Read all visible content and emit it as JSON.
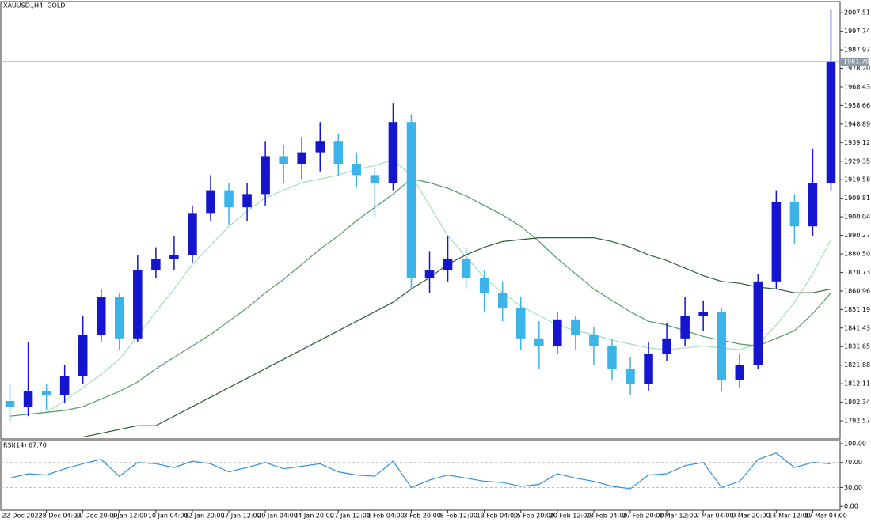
{
  "chart_data": {
    "type": "candlestick",
    "title": "XAUUSD.,H4:  GOLD",
    "up_color": "#1515d0",
    "down_color": "#3cb4ea",
    "categories": [
      "22 Dec 2022",
      null,
      "28 Dec 04:00",
      null,
      "30 Dec 20:00",
      null,
      "5 Jan 12:00",
      null,
      "10 Jan 04:00",
      null,
      "12 Jan 20:00",
      null,
      "17 Jan 12:00",
      null,
      "20 Jan 04:00",
      null,
      "24 Jan 20:00",
      null,
      "27 Jan 12:00",
      null,
      "1 Feb 04:00",
      null,
      "3 Feb 20:00",
      null,
      "8 Feb 12:00",
      null,
      "13 Feb 04:00",
      null,
      "15 Feb 20:00",
      null,
      "20 Feb 12:00",
      null,
      "23 Feb 04:00",
      null,
      "27 Feb 20:00",
      null,
      "2 Mar 12:00",
      null,
      "7 Mar 04:00",
      null,
      "9 Mar 20:00",
      null,
      "14 Mar 12:00",
      null,
      "17 Mar 04:00",
      null
    ],
    "candles": [
      [
        1803,
        1812,
        1792,
        1800
      ],
      [
        1800,
        1834,
        1795,
        1808
      ],
      [
        1808,
        1812,
        1798,
        1806
      ],
      [
        1806,
        1822,
        1802,
        1816
      ],
      [
        1816,
        1848,
        1812,
        1838
      ],
      [
        1838,
        1862,
        1834,
        1858
      ],
      [
        1858,
        1860,
        1830,
        1836
      ],
      [
        1836,
        1880,
        1834,
        1872
      ],
      [
        1872,
        1884,
        1868,
        1878
      ],
      [
        1878,
        1890,
        1872,
        1880
      ],
      [
        1880,
        1906,
        1876,
        1902
      ],
      [
        1902,
        1922,
        1898,
        1914
      ],
      [
        1914,
        1918,
        1896,
        1905
      ],
      [
        1905,
        1918,
        1898,
        1912
      ],
      [
        1912,
        1940,
        1906,
        1932
      ],
      [
        1932,
        1938,
        1918,
        1928
      ],
      [
        1928,
        1942,
        1920,
        1934
      ],
      [
        1934,
        1950,
        1924,
        1940
      ],
      [
        1940,
        1944,
        1922,
        1928
      ],
      [
        1928,
        1934,
        1916,
        1922
      ],
      [
        1922,
        1926,
        1900,
        1918
      ],
      [
        1918,
        1960,
        1914,
        1950
      ],
      [
        1950,
        1954,
        1862,
        1868
      ],
      [
        1868,
        1882,
        1860,
        1872
      ],
      [
        1872,
        1890,
        1866,
        1878
      ],
      [
        1878,
        1884,
        1862,
        1868
      ],
      [
        1868,
        1872,
        1850,
        1860
      ],
      [
        1860,
        1866,
        1845,
        1852
      ],
      [
        1852,
        1858,
        1830,
        1836
      ],
      [
        1836,
        1845,
        1820,
        1832
      ],
      [
        1832,
        1850,
        1828,
        1846
      ],
      [
        1846,
        1848,
        1830,
        1838
      ],
      [
        1838,
        1842,
        1822,
        1832
      ],
      [
        1832,
        1836,
        1814,
        1820
      ],
      [
        1820,
        1826,
        1806,
        1812
      ],
      [
        1812,
        1834,
        1808,
        1828
      ],
      [
        1828,
        1844,
        1824,
        1836
      ],
      [
        1836,
        1858,
        1832,
        1848
      ],
      [
        1848,
        1856,
        1840,
        1850
      ],
      [
        1850,
        1852,
        1808,
        1814
      ],
      [
        1814,
        1828,
        1810,
        1822
      ],
      [
        1822,
        1870,
        1820,
        1866
      ],
      [
        1866,
        1914,
        1862,
        1908
      ],
      [
        1908,
        1912,
        1886,
        1895
      ],
      [
        1895,
        1936,
        1890,
        1918
      ],
      [
        1918,
        2009,
        1914,
        1982
      ]
    ],
    "series": [
      {
        "color": "#9fe0b4",
        "values": [
          1795,
          1796,
          1797,
          1803,
          1810,
          1817,
          1825,
          1837,
          1850,
          1862,
          1875,
          1885,
          1895,
          1903,
          1910,
          1914,
          1918,
          1920,
          1922,
          1925,
          1927,
          1930,
          1922,
          1906,
          1890,
          1879,
          1868,
          1860,
          1853,
          1848,
          1843,
          1840,
          1838,
          1835,
          1833,
          1831,
          1830,
          1831,
          1832,
          1831,
          1830,
          1833,
          1843,
          1855,
          1870,
          1888
        ]
      },
      {
        "color": "#4f9d64",
        "values": [
          1795,
          1796,
          1797,
          1798,
          1800,
          1804,
          1808,
          1813,
          1820,
          1826,
          1832,
          1838,
          1845,
          1852,
          1860,
          1867,
          1875,
          1883,
          1890,
          1898,
          1905,
          1912,
          1920,
          1918,
          1915,
          1911,
          1906,
          1901,
          1895,
          1887,
          1878,
          1870,
          1862,
          1856,
          1850,
          1845,
          1843,
          1840,
          1837,
          1835,
          1833,
          1832,
          1836,
          1840,
          1849,
          1860
        ]
      },
      {
        "color": "#2b6038",
        "values": [
          null,
          null,
          null,
          null,
          1784,
          1786,
          1788,
          1790,
          1790,
          1795,
          1800,
          1805,
          1810,
          1815,
          1820,
          1825,
          1830,
          1835,
          1840,
          1845,
          1850,
          1855,
          1862,
          1868,
          1875,
          1880,
          1884,
          1887,
          1888,
          1889,
          1889,
          1889,
          1889,
          1887,
          1884,
          1880,
          1877,
          1873,
          1869,
          1866,
          1865,
          1863,
          1862,
          1860,
          1860,
          1862
        ]
      }
    ],
    "current_price": {
      "value": 1981.79,
      "label": "1981.79"
    },
    "ylim": [
      1783,
      2013
    ],
    "yticks": [
      1792.57,
      {
        "value": 1802.34,
        "label": "1802.34"
      },
      1812.11,
      1821.88,
      1831.65,
      1841.43,
      1851.19,
      1860.96,
      1870.73,
      {
        "value": 1880.5,
        "label": "1880.50"
      },
      1890.27,
      {
        "value": 1900.04,
        "label": "1900.04"
      },
      1909.81,
      1919.58,
      1929.35,
      1939.12,
      1948.89,
      1958.66,
      1968.43,
      {
        "value": 1978.2,
        "label": "1978.20"
      },
      1987.97,
      1997.74,
      2007.51
    ],
    "rsi": {
      "title": "RSI(14) 67.70",
      "color": "#2f8fe0",
      "values": [
        45,
        52,
        50,
        60,
        68,
        75,
        48,
        70,
        68,
        62,
        72,
        68,
        55,
        62,
        70,
        60,
        64,
        68,
        55,
        50,
        48,
        72,
        30,
        42,
        50,
        45,
        40,
        38,
        32,
        35,
        52,
        45,
        40,
        32,
        28,
        50,
        52,
        65,
        70,
        30,
        40,
        75,
        85,
        62,
        70,
        68
      ],
      "ylim": [
        -6,
        105
      ],
      "yticks": [
        {
          "value": 100,
          "label": "100.00"
        },
        {
          "value": 70,
          "label": "70.00"
        },
        {
          "value": 30,
          "label": "30.00"
        },
        {
          "value": 0,
          "label": "0.00"
        }
      ],
      "levels": [
        70,
        30
      ]
    }
  }
}
